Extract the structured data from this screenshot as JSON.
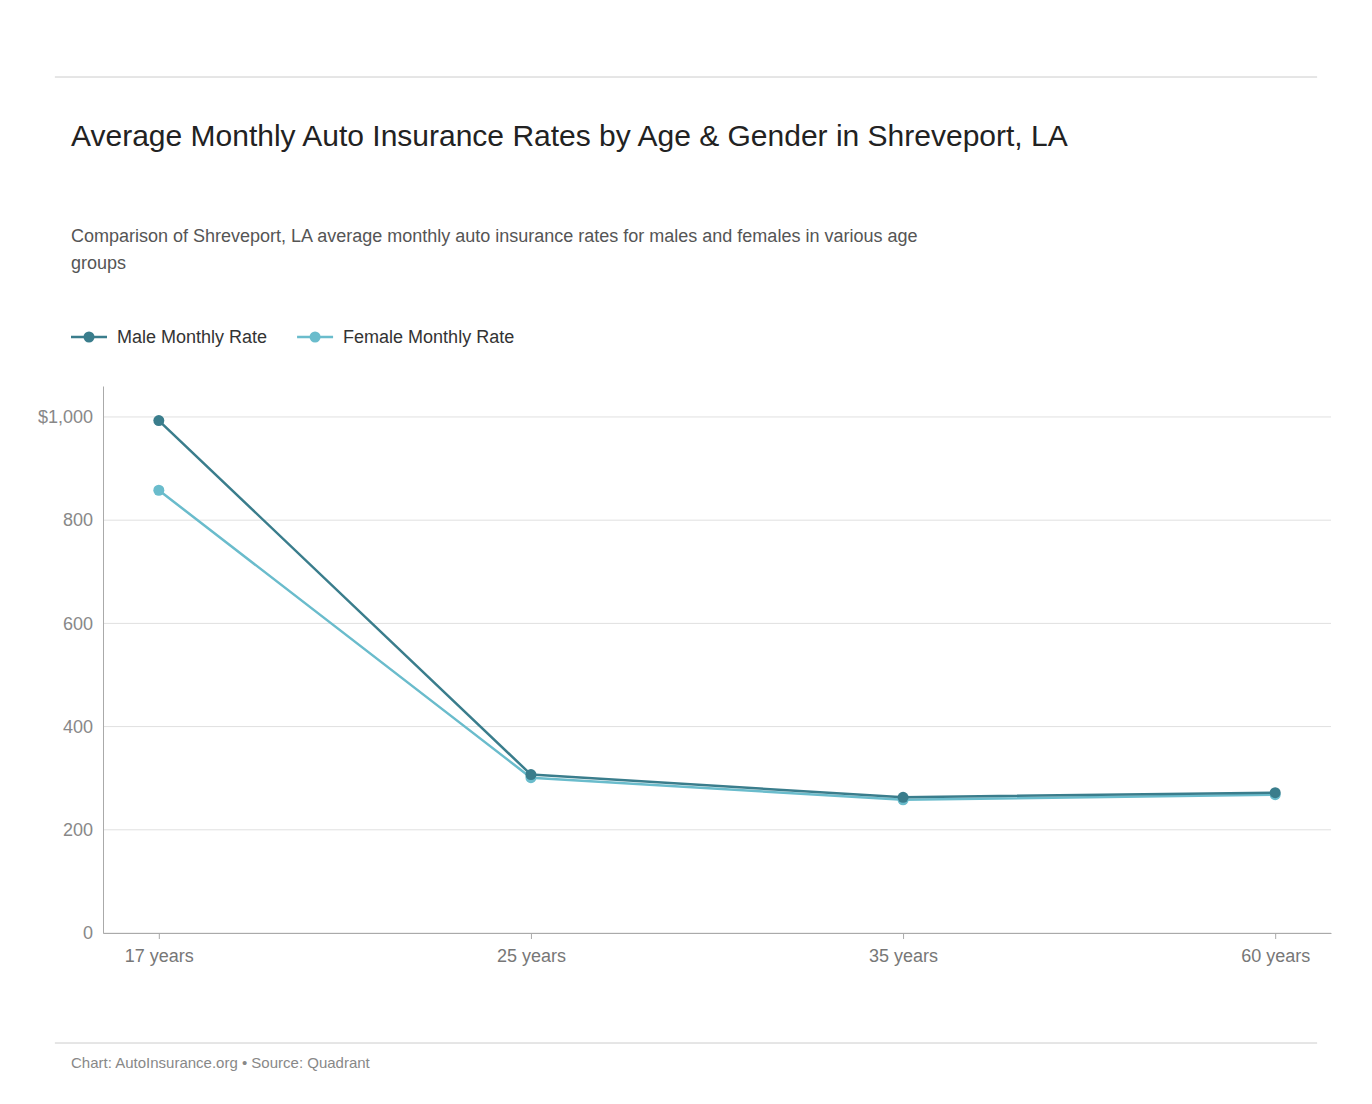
{
  "chart_data": {
    "type": "line",
    "title": "Average Monthly Auto Insurance Rates by Age & Gender in Shreveport, LA",
    "subtitle": "Comparison of Shreveport, LA average monthly auto insurance rates for males and females in various age\ngroups",
    "annotations": [
      "Chart: AutoInsurance.org • Source: Quadrant"
    ],
    "categories": [
      "17 years",
      "25 years",
      "35 years",
      "60 years"
    ],
    "series": [
      {
        "name": "Male Monthly Rate",
        "color": "#3a7d8c",
        "values": [
          993,
          307,
          263,
          272
        ],
        "marker": "circle",
        "line_style": "solid"
      },
      {
        "name": "Female Monthly Rate",
        "color": "#6abccc",
        "values": [
          858,
          301,
          258,
          268
        ],
        "marker": "circle",
        "line_style": "solid"
      }
    ],
    "ylim": [
      0,
      1060
    ],
    "yticks": [
      0,
      200,
      400,
      600,
      800,
      {
        "value": 1000,
        "label": "$1,000"
      }
    ],
    "grid": true,
    "legend": "top-left"
  }
}
